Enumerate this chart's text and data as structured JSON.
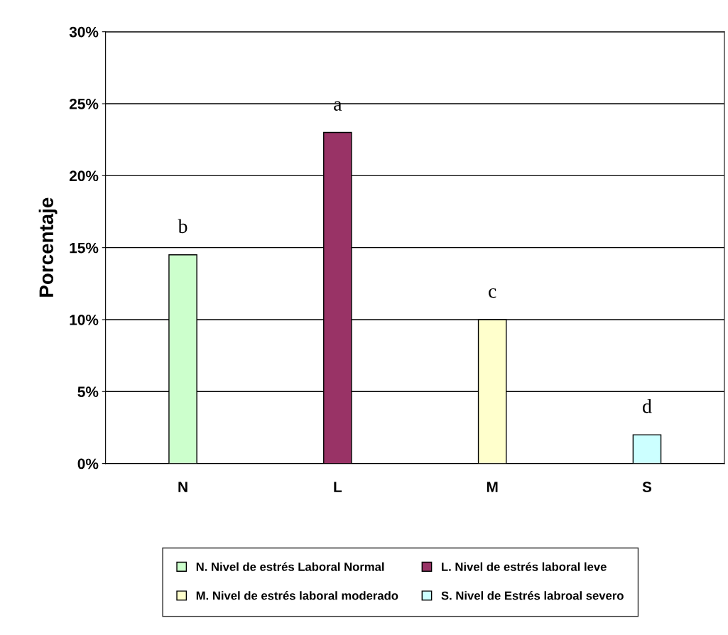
{
  "chart_data": {
    "type": "bar",
    "ylabel": "Porcentaje",
    "categories": [
      "N",
      "L",
      "M",
      "S"
    ],
    "series": [
      {
        "name": "N. Nivel de estrés Laboral Normal",
        "color": "#ccffcc",
        "values": [
          14.5,
          null,
          null,
          null
        ]
      },
      {
        "name": "L. Nivel de estrés laboral leve",
        "color": "#993366",
        "values": [
          null,
          23,
          null,
          null
        ]
      },
      {
        "name": "M. Nivel de estrés laboral moderado",
        "color": "#ffffcc",
        "values": [
          null,
          null,
          10,
          null
        ]
      },
      {
        "name": "S. Nivel de Estrés labroal severo",
        "color": "#ccffff",
        "values": [
          null,
          null,
          null,
          2
        ]
      }
    ],
    "ylim": [
      0,
      30
    ],
    "yticks": [
      {
        "value": 0,
        "label": "0%"
      },
      {
        "value": 5,
        "label": "5%"
      },
      {
        "value": 10,
        "label": "10%"
      },
      {
        "value": 15,
        "label": "15%"
      },
      {
        "value": 20,
        "label": "20%"
      },
      {
        "value": 25,
        "label": "25%"
      },
      {
        "value": 30,
        "label": "30%"
      }
    ],
    "grid": "y",
    "legend": "bottom",
    "annotations": [
      {
        "text": "b",
        "x": "N",
        "y": 14.5
      },
      {
        "text": "a",
        "x": "L",
        "y": 23
      },
      {
        "text": "c",
        "x": "M",
        "y": 10
      },
      {
        "text": "d",
        "x": "S",
        "y": 2
      }
    ]
  }
}
